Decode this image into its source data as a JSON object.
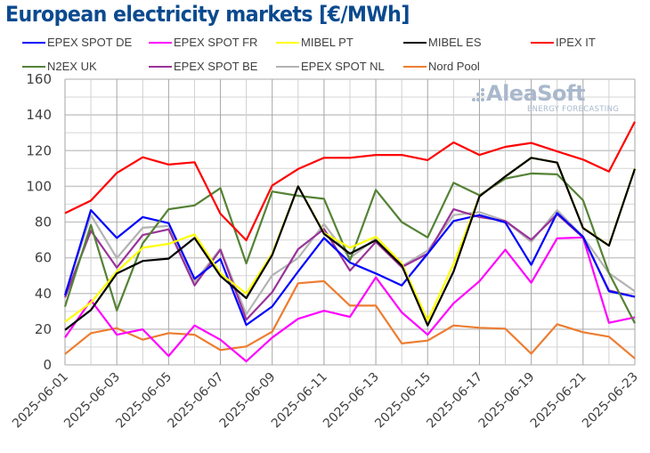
{
  "title": "European electricity markets [€/MWh]",
  "watermark": {
    "brand": "AleaSoft",
    "tagline": "ENERGY FORECASTING"
  },
  "chart_data": {
    "type": "line",
    "title": "European electricity markets [€/MWh]",
    "xlabel": "",
    "ylabel": "",
    "ylim": [
      0,
      160
    ],
    "yticks": [
      0,
      20,
      40,
      60,
      80,
      100,
      120,
      140,
      160
    ],
    "grid": true,
    "legend_position": "top",
    "x": [
      "2025-06-01",
      "2025-06-02",
      "2025-06-03",
      "2025-06-04",
      "2025-06-05",
      "2025-06-06",
      "2025-06-07",
      "2025-06-08",
      "2025-06-09",
      "2025-06-10",
      "2025-06-11",
      "2025-06-12",
      "2025-06-13",
      "2025-06-14",
      "2025-06-15",
      "2025-06-16",
      "2025-06-17",
      "2025-06-18",
      "2025-06-19",
      "2025-06-20",
      "2025-06-21",
      "2025-06-22",
      "2025-06-23"
    ],
    "xtick_labels": [
      "2025-06-01",
      "2025-06-03",
      "2025-06-05",
      "2025-06-07",
      "2025-06-09",
      "2025-06-11",
      "2025-06-13",
      "2025-06-15",
      "2025-06-17",
      "2025-06-19",
      "2025-06-21",
      "2025-06-23"
    ],
    "series": [
      {
        "name": "EPEX SPOT DE",
        "color": "#0000ff",
        "values": [
          39.0,
          86.7,
          71.1,
          82.8,
          79.4,
          48.2,
          59.3,
          22.4,
          32.7,
          52.3,
          71.1,
          57.3,
          51.2,
          44.5,
          62.3,
          80.6,
          83.9,
          79.8,
          56.0,
          85.1,
          71.8,
          41.2,
          38.2
        ]
      },
      {
        "name": "EPEX SPOT FR",
        "color": "#ff00ff",
        "values": [
          15.3,
          36.2,
          16.9,
          19.9,
          5.0,
          22.1,
          14.1,
          2.0,
          15.3,
          25.8,
          30.3,
          26.9,
          49.0,
          29.4,
          16.9,
          34.5,
          46.9,
          64.5,
          46.0,
          70.9,
          71.4,
          23.6,
          26.6
        ]
      },
      {
        "name": "MIBEL PT",
        "color": "#ffff00",
        "values": [
          24.1,
          34.9,
          52.3,
          65.6,
          67.8,
          73.1,
          51.2,
          39.9,
          62.3,
          100.0,
          73.9,
          65.6,
          71.8,
          56.8,
          24.9,
          56.5,
          94.4,
          105.5,
          116.0,
          113.3,
          76.8,
          67.0,
          110.0
        ]
      },
      {
        "name": "MIBEL ES",
        "color": "#000000",
        "values": [
          19.6,
          30.7,
          51.2,
          58.2,
          59.5,
          71.1,
          49.8,
          37.4,
          61.5,
          100.0,
          73.4,
          62.3,
          69.8,
          55.7,
          22.1,
          52.3,
          94.4,
          105.5,
          116.0,
          113.3,
          76.6,
          66.8,
          109.8
        ]
      },
      {
        "name": "IPEX IT",
        "color": "#ff0000",
        "values": [
          85.0,
          92.0,
          107.5,
          116.3,
          112.2,
          113.5,
          84.7,
          69.8,
          100.5,
          109.7,
          116.0,
          116.0,
          117.6,
          117.6,
          114.7,
          124.6,
          117.6,
          122.1,
          124.3,
          119.6,
          115.0,
          108.3,
          136.2
        ]
      },
      {
        "name": "N2EX UK",
        "color": "#548235",
        "values": [
          32.6,
          78.4,
          30.5,
          68.1,
          87.2,
          89.3,
          99.0,
          56.8,
          97.1,
          94.7,
          93.0,
          58.5,
          98.0,
          80.0,
          71.4,
          102.0,
          95.0,
          104.3,
          107.2,
          106.7,
          92.2,
          51.5,
          23.3
        ]
      },
      {
        "name": "EPEX SPOT BE",
        "color": "#993399",
        "values": [
          37.8,
          75.1,
          54.5,
          72.7,
          75.9,
          44.5,
          64.5,
          25.3,
          40.7,
          64.8,
          76.1,
          52.8,
          68.9,
          54.8,
          62.3,
          87.2,
          82.8,
          80.6,
          70.1,
          84.4,
          71.4,
          41.7,
          38.2
        ]
      },
      {
        "name": "EPEX SPOT NL",
        "color": "#b3b3b3",
        "values": [
          39.0,
          83.9,
          59.8,
          76.8,
          77.8,
          46.5,
          65.0,
          28.3,
          50.2,
          59.8,
          78.9,
          59.8,
          70.9,
          55.2,
          64.0,
          83.9,
          85.6,
          80.6,
          68.9,
          86.7,
          71.8,
          51.4,
          41.2
        ]
      },
      {
        "name": "Nord Pool",
        "color": "#ed7d31",
        "values": [
          6.1,
          17.8,
          20.6,
          14.1,
          17.8,
          16.9,
          8.3,
          10.3,
          18.6,
          45.7,
          46.9,
          33.2,
          33.2,
          12.0,
          13.6,
          22.1,
          20.8,
          20.3,
          6.3,
          22.8,
          18.3,
          15.8,
          3.6
        ]
      }
    ]
  }
}
